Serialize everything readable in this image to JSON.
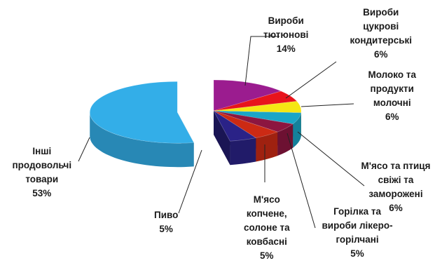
{
  "chart_data": {
    "type": "pie",
    "style": "3d-exploded",
    "categories": [
      "Вироби тютюнові",
      "Вироби цукрові кондитерські",
      "Молоко та продукти молочні",
      "М'ясо та птиця свіжі та заморожені",
      "Горілка та вироби лікеро-горілчані",
      "М'ясо копчене, солоне та ковбасні",
      "Пиво",
      "Інші продовольчі товари"
    ],
    "values": [
      14,
      6,
      6,
      6,
      5,
      5,
      5,
      53
    ],
    "value_labels": [
      "14%",
      "6%",
      "6%",
      "6%",
      "5%",
      "5%",
      "5%",
      "53%"
    ],
    "colors": [
      "#9b1c8f",
      "#e8131c",
      "#f5e614",
      "#1aa5c7",
      "#8c1640",
      "#cc2a14",
      "#2a2287",
      "#33aee8"
    ],
    "label_lines": [
      [
        "Вироби",
        "тютюнові"
      ],
      [
        "Вироби",
        "цукрові",
        "кондитерські"
      ],
      [
        "Молоко та",
        "продукти",
        "молочні"
      ],
      [
        "М'ясо та птиця",
        "свіжі та",
        "заморожені"
      ],
      [
        "Горілка та",
        "вироби лікеро-",
        "горілчані"
      ],
      [
        "М'ясо",
        "копчене,",
        "солоне та",
        "ковбасні"
      ],
      [
        "Пиво"
      ],
      [
        "Інші",
        "продовольчі",
        "товари"
      ]
    ],
    "legend": "none",
    "title": ""
  }
}
